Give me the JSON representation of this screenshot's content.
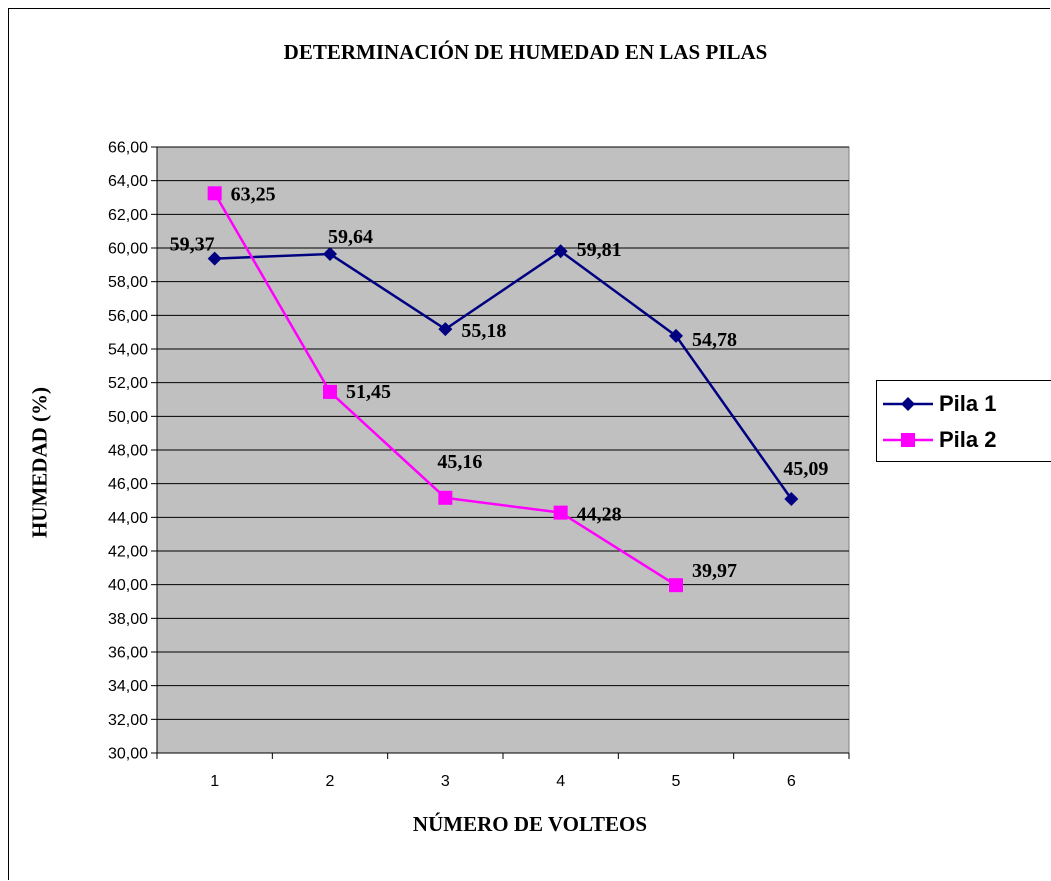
{
  "chart_data": {
    "type": "line",
    "title": "DETERMINACIÓN DE HUMEDAD EN LAS PILAS",
    "xlabel": "NÚMERO DE VOLTEOS",
    "ylabel": "HUMEDAD (%)",
    "categories": [
      "1",
      "2",
      "3",
      "4",
      "5",
      "6"
    ],
    "ylim": [
      30,
      66
    ],
    "ytick_step": 2,
    "ytick_labels": [
      "30,00",
      "32,00",
      "34,00",
      "36,00",
      "38,00",
      "40,00",
      "42,00",
      "44,00",
      "46,00",
      "48,00",
      "50,00",
      "52,00",
      "54,00",
      "56,00",
      "58,00",
      "60,00",
      "62,00",
      "64,00",
      "66,00"
    ],
    "grid": "horizontal",
    "plot_background": "#C0C0C0",
    "legend_position": "right",
    "series": [
      {
        "name": "Pila 1",
        "values": [
          59.37,
          59.64,
          55.18,
          59.81,
          54.78,
          45.09
        ],
        "labels": [
          "59,37",
          "59,64",
          "55,18",
          "59,81",
          "54,78",
          "45,09"
        ],
        "color": "#000080",
        "marker": "diamond"
      },
      {
        "name": "Pila 2",
        "values": [
          63.25,
          51.45,
          45.16,
          44.28,
          39.97,
          null
        ],
        "labels": [
          "63,25",
          "51,45",
          "45,16",
          "44,28",
          "39,97",
          null
        ],
        "color": "#FF00FF",
        "marker": "square"
      }
    ]
  }
}
